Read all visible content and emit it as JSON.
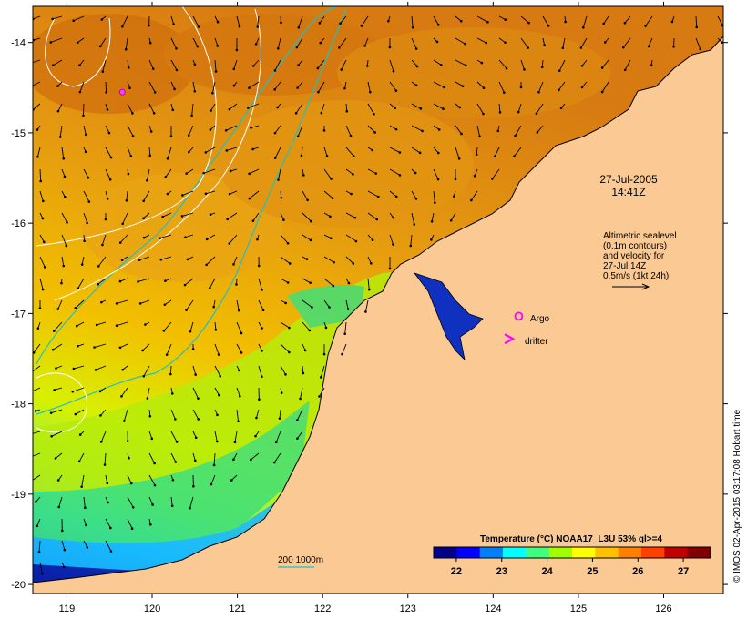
{
  "map": {
    "lon_range": [
      118.6,
      126.7
    ],
    "lat_range": [
      -20.1,
      -13.6
    ],
    "x_ticks": [
      119,
      120,
      121,
      122,
      123,
      124,
      125,
      126
    ],
    "y_ticks": [
      -14,
      -15,
      -16,
      -17,
      -18,
      -19,
      -20
    ]
  },
  "annotations": {
    "date": "27-Jul-2005",
    "time": "14:41Z",
    "altimetry_lines": [
      "Altimetric sealevel",
      "(0.1m contours)",
      "and velocity for",
      "27-Jul 14Z",
      "0.5m/s (1kt 24h)"
    ],
    "argo_label": "Argo",
    "drifter_label": "drifter",
    "argo_marker": {
      "lon": 124.3,
      "lat": -17.03
    },
    "argo_on_sea": {
      "lon": 119.65,
      "lat": -14.55
    },
    "drifter_marker": {
      "lon": 124.2,
      "lat": -17.28
    },
    "bathymetry_label": "200  1000m"
  },
  "colorbar": {
    "title": "Temperature (°C) NOAA17_L3U 53% ql>=4",
    "ticks": [
      "22",
      "23",
      "24",
      "25",
      "26",
      "27"
    ],
    "range": [
      21.5,
      27.6
    ],
    "colors": [
      "#00008b",
      "#0000ff",
      "#0080ff",
      "#00ffff",
      "#40ff80",
      "#a0ff00",
      "#ffff00",
      "#ffc000",
      "#ff8000",
      "#ff4000",
      "#c00000",
      "#800000"
    ]
  },
  "credit": "© IMOS 02-Apr-2015 03:17:08 Hobart time",
  "colors": {
    "land": "#fbc994",
    "contour_200": "#20c0c0",
    "contour_ssh": "#ffffff",
    "argo": "#ff00ff",
    "drifter": "#ff00ff"
  }
}
